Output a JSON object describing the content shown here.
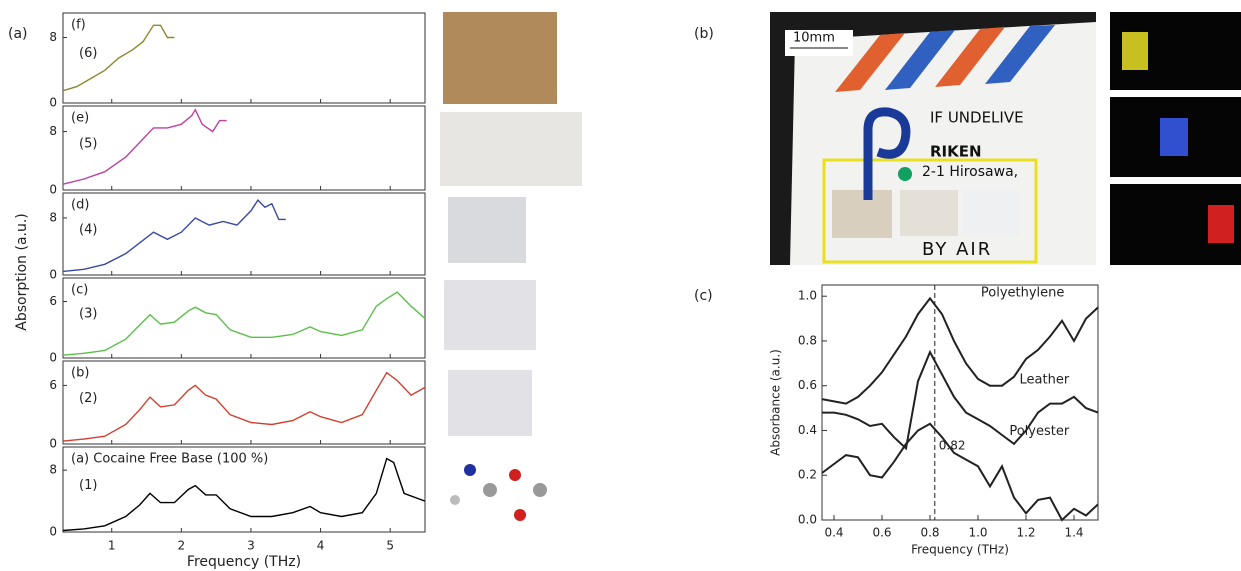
{
  "figure": {
    "panel_labels": [
      "(a)",
      "(b)",
      "(c)"
    ],
    "photo_b": {
      "scale": "10mm",
      "line1": "IF UNDELIVE",
      "line2": "RIKEN",
      "line3": "2-1 Hirosawa,",
      "line4": "BY AIR"
    }
  },
  "chart_data": [
    {
      "type": "line",
      "label": "(f)",
      "number": "(6)",
      "color": "#8a8a30",
      "xlim": [
        0.3,
        5.5
      ],
      "ylim": [
        0,
        11
      ],
      "yticks": [
        0,
        8
      ],
      "x": [
        0.3,
        0.5,
        0.7,
        0.9,
        1.1,
        1.3,
        1.45,
        1.6,
        1.7,
        1.8,
        1.9
      ],
      "values": [
        1.5,
        2,
        3,
        4,
        5.5,
        6.5,
        7.5,
        9.5,
        9.5,
        8,
        8
      ]
    },
    {
      "type": "line",
      "label": "(e)",
      "number": "(5)",
      "color": "#c040a0",
      "xlim": [
        0.3,
        5.5
      ],
      "ylim": [
        0,
        11.5
      ],
      "yticks": [
        0,
        8
      ],
      "x": [
        0.3,
        0.6,
        0.9,
        1.2,
        1.4,
        1.6,
        1.8,
        2.0,
        2.15,
        2.2,
        2.3,
        2.45,
        2.55,
        2.65
      ],
      "values": [
        0.8,
        1.5,
        2.5,
        4.5,
        6.5,
        8.5,
        8.5,
        9,
        10.2,
        11,
        9,
        8,
        9.5,
        9.5
      ]
    },
    {
      "type": "line",
      "label": "(d)",
      "number": "(4)",
      "color": "#3a4aa0",
      "xlim": [
        0.3,
        5.5
      ],
      "ylim": [
        0,
        11.5
      ],
      "yticks": [
        0,
        8
      ],
      "ylabel": "Absorption (a.u.)",
      "x": [
        0.3,
        0.6,
        0.9,
        1.2,
        1.4,
        1.6,
        1.8,
        2.0,
        2.2,
        2.4,
        2.6,
        2.8,
        3.0,
        3.1,
        3.2,
        3.3,
        3.4,
        3.5
      ],
      "values": [
        0.5,
        0.8,
        1.5,
        3,
        4.5,
        6,
        5,
        6,
        8,
        7,
        7.5,
        7,
        9,
        10.5,
        9.5,
        10,
        7.8,
        7.8
      ]
    },
    {
      "type": "line",
      "label": "(c)",
      "number": "(3)",
      "color": "#5cbf4a",
      "xlim": [
        0.3,
        5.5
      ],
      "ylim": [
        0,
        8.5
      ],
      "yticks": [
        0,
        6
      ],
      "x": [
        0.3,
        0.6,
        0.9,
        1.2,
        1.4,
        1.55,
        1.7,
        1.9,
        2.1,
        2.2,
        2.35,
        2.5,
        2.7,
        3.0,
        3.3,
        3.6,
        3.85,
        4.0,
        4.3,
        4.6,
        4.8,
        4.95,
        5.1,
        5.3,
        5.5
      ],
      "values": [
        0.3,
        0.5,
        0.8,
        2,
        3.5,
        4.6,
        3.6,
        3.8,
        5,
        5.4,
        4.8,
        4.6,
        3,
        2.2,
        2.2,
        2.5,
        3.3,
        2.8,
        2.4,
        3,
        5.5,
        6.3,
        7,
        5.5,
        4.2
      ]
    },
    {
      "type": "line",
      "label": "(b)",
      "number": "(2)",
      "color": "#d04030",
      "xlim": [
        0.3,
        5.5
      ],
      "ylim": [
        0,
        8.5
      ],
      "yticks": [
        0,
        6
      ],
      "x": [
        0.3,
        0.6,
        0.9,
        1.2,
        1.4,
        1.55,
        1.7,
        1.9,
        2.1,
        2.2,
        2.35,
        2.5,
        2.7,
        3.0,
        3.3,
        3.6,
        3.85,
        4.0,
        4.3,
        4.6,
        4.8,
        4.95,
        5.1,
        5.3,
        5.5
      ],
      "values": [
        0.3,
        0.5,
        0.8,
        2,
        3.5,
        4.8,
        3.8,
        4,
        5.5,
        6,
        5,
        4.6,
        3,
        2.2,
        2,
        2.4,
        3.3,
        2.8,
        2.2,
        3,
        5.5,
        7.3,
        6.5,
        5,
        5.8
      ]
    },
    {
      "type": "line",
      "label": "(a) Cocaine Free Base (100 %)",
      "number": "(1)",
      "color": "#000000",
      "xlim": [
        0.3,
        5.5
      ],
      "ylim": [
        0,
        11
      ],
      "yticks": [
        0,
        8
      ],
      "xticks": [
        1,
        2,
        3,
        4,
        5
      ],
      "xlabel": "Frequency (THz)",
      "x": [
        0.3,
        0.6,
        0.9,
        1.2,
        1.4,
        1.55,
        1.7,
        1.9,
        2.1,
        2.2,
        2.35,
        2.5,
        2.7,
        3.0,
        3.3,
        3.6,
        3.85,
        4.0,
        4.3,
        4.6,
        4.8,
        4.95,
        5.05,
        5.2,
        5.5
      ],
      "values": [
        0.2,
        0.4,
        0.8,
        2,
        3.5,
        5,
        3.8,
        3.8,
        5.5,
        6,
        4.8,
        4.8,
        3,
        2,
        2,
        2.5,
        3.3,
        2.5,
        2,
        2.5,
        5,
        9.5,
        9,
        5,
        4
      ]
    },
    {
      "type": "multiline",
      "xlabel": "Frequency (THz)",
      "ylabel": "Absorbance (a.u.)",
      "xlim": [
        0.35,
        1.5
      ],
      "ylim": [
        0,
        1.05
      ],
      "xticks": [
        0.4,
        0.6,
        0.8,
        {
          "value": 1.0,
          "label": "1.0"
        },
        1.2,
        1.4
      ],
      "yticks": [
        {
          "value": 0,
          "label": "0.0"
        },
        0.2,
        0.4,
        0.6,
        0.8,
        {
          "value": 1.0,
          "label": "1.0"
        }
      ],
      "marker": 0.82,
      "x": [
        0.35,
        0.4,
        0.45,
        0.5,
        0.55,
        0.6,
        0.65,
        0.7,
        0.75,
        0.8,
        0.85,
        0.9,
        0.95,
        1.0,
        1.05,
        1.1,
        1.15,
        1.2,
        1.25,
        1.3,
        1.35,
        1.4,
        1.45,
        1.5
      ],
      "series": [
        {
          "name": "Polyethylene",
          "color": "#222222",
          "values": [
            0.54,
            0.53,
            0.52,
            0.55,
            0.6,
            0.66,
            0.74,
            0.82,
            0.92,
            0.99,
            0.92,
            0.8,
            0.7,
            0.63,
            0.6,
            0.6,
            0.64,
            0.72,
            0.76,
            0.82,
            0.89,
            0.8,
            0.9,
            0.95
          ]
        },
        {
          "name": "Leather",
          "color": "#222222",
          "values": [
            0.48,
            0.48,
            0.47,
            0.45,
            0.42,
            0.43,
            0.37,
            0.32,
            0.62,
            0.75,
            0.65,
            0.55,
            0.48,
            0.45,
            0.42,
            0.38,
            0.34,
            0.4,
            0.48,
            0.52,
            0.52,
            0.55,
            0.5,
            0.48
          ]
        },
        {
          "name": "Polyester",
          "color": "#222222",
          "values": [
            0.21,
            0.25,
            0.29,
            0.28,
            0.2,
            0.19,
            0.26,
            0.34,
            0.4,
            0.43,
            0.37,
            0.3,
            0.27,
            0.24,
            0.15,
            0.24,
            0.1,
            0.03,
            0.09,
            0.1,
            0.0,
            0.05,
            0.02,
            0.07
          ]
        }
      ]
    }
  ]
}
